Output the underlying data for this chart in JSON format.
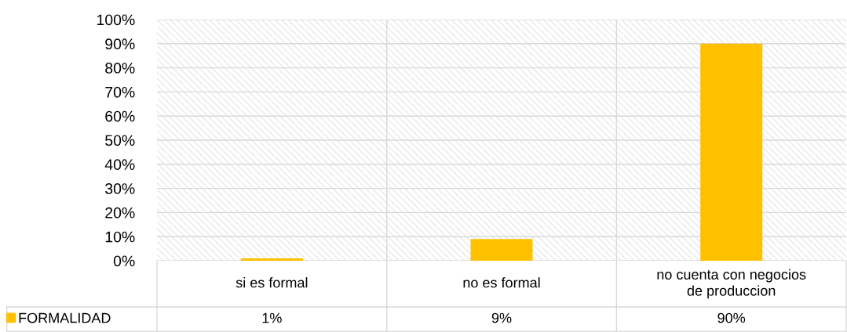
{
  "chart_data": {
    "type": "bar",
    "categories": [
      "si es formal",
      "no es formal",
      "no cuenta con negocios\nde produccion"
    ],
    "series": [
      {
        "name": "FORMALIDAD",
        "color": "#ffc000",
        "values": [
          1,
          9,
          90
        ],
        "value_labels": [
          "1%",
          "9%",
          "90%"
        ]
      }
    ],
    "ylim": [
      0,
      100
    ],
    "yticks": [
      {
        "value": 0,
        "label": "0%"
      },
      {
        "value": 10,
        "label": "10%"
      },
      {
        "value": 20,
        "label": "20%"
      },
      {
        "value": 30,
        "label": "30%"
      },
      {
        "value": 40,
        "label": "40%"
      },
      {
        "value": 50,
        "label": "50%"
      },
      {
        "value": 60,
        "label": "60%"
      },
      {
        "value": 70,
        "label": "70%"
      },
      {
        "value": 80,
        "label": "80%"
      },
      {
        "value": 90,
        "label": "90%"
      },
      {
        "value": 100,
        "label": "100%"
      }
    ],
    "grid": true,
    "legend": "bottom left"
  }
}
